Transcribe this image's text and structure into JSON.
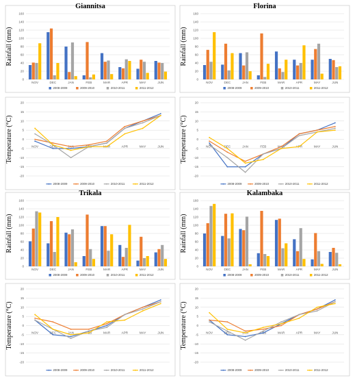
{
  "months": [
    "NOV",
    "DEC",
    "JAN",
    "FEB",
    "MAR",
    "APR",
    "MAY",
    "JUN"
  ],
  "series_names": [
    "2008-2009",
    "2009-2010",
    "2010-2011",
    "2011-2012"
  ],
  "colors": [
    "#4472C4",
    "#ED7D31",
    "#A5A5A5",
    "#FFC000"
  ],
  "rainfall_axis": {
    "label": "Rainfall (mm)",
    "ylim": [
      0,
      160
    ],
    "ticks": [
      "0",
      "20",
      "40",
      "60",
      "80",
      "100",
      "120",
      "140",
      "160"
    ]
  },
  "temperature_axis": {
    "label": "Temperature (°C)",
    "ylim": [
      -20,
      20
    ],
    "ticks": [
      "-20",
      "-15",
      "-10",
      "-5",
      "0",
      "5",
      "10",
      "15",
      "20"
    ]
  },
  "chart_data": [
    {
      "type": "bar",
      "title": "Giannitsa",
      "ylabel": "Rainfall (mm)",
      "categories": [
        "NOV",
        "DEC",
        "JAN",
        "FEB",
        "MAR",
        "APR",
        "MAY",
        "JUN"
      ],
      "ylim": [
        0,
        160
      ],
      "series": [
        {
          "name": "2008-2009",
          "values": [
            35,
            115,
            80,
            10,
            64,
            30,
            26,
            45
          ]
        },
        {
          "name": "2009-2010",
          "values": [
            41,
            124,
            18,
            91,
            43,
            27,
            48,
            41
          ]
        },
        {
          "name": "2010-2011",
          "values": [
            40,
            10,
            90,
            5,
            46,
            49,
            43,
            40
          ]
        },
        {
          "name": "2011-2012",
          "values": [
            88,
            40,
            8,
            12,
            13,
            45,
            16,
            19
          ]
        }
      ]
    },
    {
      "type": "line",
      "ylabel": "Temperature (°C)",
      "categories": [
        "NOV",
        "DEC",
        "JAN",
        "FEB",
        "MAR",
        "APR",
        "MAY",
        "JUN"
      ],
      "ylim": [
        -20,
        20
      ],
      "series": [
        {
          "name": "2008-2009",
          "values": [
            -1,
            -5,
            -5,
            -4,
            -2,
            6,
            10,
            14
          ]
        },
        {
          "name": "2009-2010",
          "values": [
            0,
            -2,
            -4,
            -3,
            -1,
            7,
            10,
            13
          ]
        },
        {
          "name": "2010-2011",
          "values": [
            3,
            -3,
            -10,
            -4,
            -2,
            6,
            9,
            13
          ]
        },
        {
          "name": "2011-2012",
          "values": [
            6,
            -3,
            -6,
            -4,
            -4,
            3,
            6,
            13
          ]
        }
      ]
    },
    {
      "type": "bar",
      "title": "Florina",
      "ylabel": "Rainfall (mm)",
      "categories": [
        "NOV",
        "DEC",
        "JAN",
        "FEB",
        "MAR",
        "APR",
        "MAY",
        "JUN"
      ],
      "ylim": [
        0,
        160
      ],
      "series": [
        {
          "name": "2008-2009",
          "values": [
            35,
            36,
            64,
            10,
            68,
            48,
            48,
            50
          ]
        },
        {
          "name": "2009-2010",
          "values": [
            72,
            87,
            34,
            112,
            27,
            34,
            74,
            47
          ]
        },
        {
          "name": "2010-2011",
          "values": [
            43,
            22,
            66,
            6,
            18,
            40,
            87,
            30
          ]
        },
        {
          "name": "2011-2012",
          "values": [
            115,
            64,
            20,
            38,
            48,
            83,
            14,
            32
          ]
        }
      ]
    },
    {
      "type": "line",
      "ylabel": "Temperature (°C)",
      "categories": [
        "NOV",
        "DEC",
        "JAN",
        "FEB",
        "MAR",
        "APR",
        "MAY",
        "JUN"
      ],
      "ylim": [
        -20,
        20
      ],
      "series": [
        {
          "name": "2008-2009",
          "values": [
            -2,
            -15,
            -15,
            -8,
            -5,
            3,
            5,
            9
          ]
        },
        {
          "name": "2009-2010",
          "values": [
            -1,
            -7,
            -12,
            -8,
            -4,
            3,
            5,
            7
          ]
        },
        {
          "name": "2010-2011",
          "values": [
            -3,
            -10,
            -18,
            -8,
            -5,
            2,
            4,
            6
          ]
        },
        {
          "name": "2011-2012",
          "values": [
            1,
            -5,
            -13,
            -11,
            -5,
            -4,
            4,
            5
          ]
        }
      ]
    },
    {
      "type": "bar",
      "title": "Trikala",
      "ylabel": "Rainfall (mm)",
      "categories": [
        "NOV",
        "DEC",
        "JAN",
        "FEB",
        "MAR",
        "APR",
        "MAY",
        "JUN"
      ],
      "ylim": [
        0,
        160
      ],
      "series": [
        {
          "name": "2008-2009",
          "values": [
            61,
            56,
            82,
            25,
            98,
            52,
            14,
            34
          ]
        },
        {
          "name": "2009-2010",
          "values": [
            92,
            110,
            78,
            126,
            98,
            23,
            72,
            42
          ]
        },
        {
          "name": "2010-2011",
          "values": [
            134,
            35,
            90,
            42,
            38,
            45,
            20,
            52
          ]
        },
        {
          "name": "2011-2012",
          "values": [
            131,
            120,
            10,
            18,
            78,
            101,
            25,
            18
          ]
        }
      ]
    },
    {
      "type": "line",
      "ylabel": "Temperature (°C)",
      "categories": [
        "NOV",
        "DEC",
        "JAN",
        "FEB",
        "MAR",
        "APR",
        "MAY",
        "JUN"
      ],
      "ylim": [
        -20,
        20
      ],
      "series": [
        {
          "name": "2008-2009",
          "values": [
            3,
            -5,
            -6,
            -3,
            0,
            6,
            10,
            14
          ]
        },
        {
          "name": "2009-2010",
          "values": [
            4,
            2,
            -2,
            -2,
            1,
            6,
            10,
            13
          ]
        },
        {
          "name": "2010-2011",
          "values": [
            3,
            -2,
            -7,
            -3,
            -1,
            6,
            9,
            13
          ]
        },
        {
          "name": "2011-2012",
          "values": [
            6,
            -2,
            -5,
            -4,
            2,
            3,
            8,
            12
          ]
        }
      ]
    },
    {
      "type": "bar",
      "title": "Kalambaka",
      "ylabel": "Rainfall (mm)",
      "categories": [
        "NOV",
        "DEC",
        "JAN",
        "FEB",
        "MAR",
        "APR",
        "MAY",
        "JUN"
      ],
      "ylim": [
        0,
        160
      ],
      "series": [
        {
          "name": "2008-2009",
          "values": [
            80,
            74,
            91,
            32,
            113,
            66,
            17,
            35
          ]
        },
        {
          "name": "2009-2010",
          "values": [
            105,
            128,
            88,
            135,
            116,
            37,
            81,
            45
          ]
        },
        {
          "name": "2010-2011",
          "values": [
            147,
            68,
            121,
            30,
            44,
            93,
            37,
            33
          ]
        },
        {
          "name": "2011-2012",
          "values": [
            152,
            129,
            5,
            25,
            56,
            18,
            6,
            5
          ]
        }
      ]
    },
    {
      "type": "line",
      "ylabel": "Temperature (°C)",
      "categories": [
        "NOV",
        "DEC",
        "JAN",
        "FEB",
        "MAR",
        "APR",
        "MAY",
        "JUN"
      ],
      "ylim": [
        -20,
        20
      ],
      "series": [
        {
          "name": "2008-2009",
          "values": [
            3,
            -5,
            -6,
            -4,
            1,
            6,
            9,
            14
          ]
        },
        {
          "name": "2009-2010",
          "values": [
            3,
            2,
            -3,
            -2,
            0,
            6,
            9,
            13
          ]
        },
        {
          "name": "2010-2011",
          "values": [
            2,
            -3,
            -8,
            -3,
            2,
            6,
            8,
            13
          ]
        },
        {
          "name": "2011-2012",
          "values": [
            7,
            -2,
            -4,
            -1,
            1,
            4,
            10,
            12
          ]
        }
      ]
    }
  ]
}
